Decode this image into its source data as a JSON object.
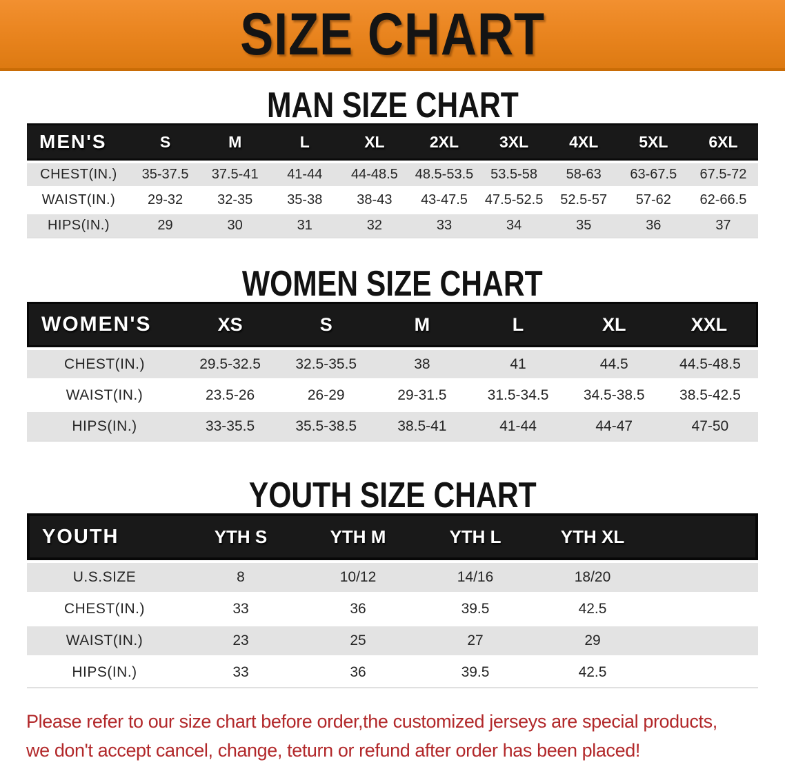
{
  "banner": {
    "title": "SIZE CHART"
  },
  "colors": {
    "banner_orange": "#E8831D",
    "banner_edge": "#C96C06",
    "header_black": "#191919",
    "row_gray": "#E3E3E3",
    "row_white": "#FFFFFF",
    "footer_red": "#B2282A",
    "heading_text": "#121212",
    "header_text": "#FFFFFF"
  },
  "men": {
    "heading": "MAN SIZE CHART",
    "table": {
      "header": [
        "MEN'S",
        "S",
        "M",
        "L",
        "XL",
        "2XL",
        "3XL",
        "4XL",
        "5XL",
        "6XL"
      ],
      "rows": [
        {
          "label": "CHEST(IN.)",
          "values": [
            "35-37.5",
            "37.5-41",
            "41-44",
            "44-48.5",
            "48.5-53.5",
            "53.5-58",
            "58-63",
            "63-67.5",
            "67.5-72"
          ]
        },
        {
          "label": "WAIST(IN.)",
          "values": [
            "29-32",
            "32-35",
            "35-38",
            "38-43",
            "43-47.5",
            "47.5-52.5",
            "52.5-57",
            "57-62",
            "62-66.5"
          ]
        },
        {
          "label": "HIPS(IN.)",
          "values": [
            "29",
            "30",
            "31",
            "32",
            "33",
            "34",
            "35",
            "36",
            "37"
          ]
        }
      ]
    }
  },
  "women": {
    "heading": "WOMEN SIZE CHART",
    "table": {
      "header": [
        "WOMEN'S",
        "XS",
        "S",
        "M",
        "L",
        "XL",
        "XXL"
      ],
      "rows": [
        {
          "label": "CHEST(IN.)",
          "values": [
            "29.5-32.5",
            "32.5-35.5",
            "38",
            "41",
            "44.5",
            "44.5-48.5"
          ]
        },
        {
          "label": "WAIST(IN.)",
          "values": [
            "23.5-26",
            "26-29",
            "29-31.5",
            "31.5-34.5",
            "34.5-38.5",
            "38.5-42.5"
          ]
        },
        {
          "label": "HIPS(IN.)",
          "values": [
            "33-35.5",
            "35.5-38.5",
            "38.5-41",
            "41-44",
            "44-47",
            "47-50"
          ]
        }
      ]
    }
  },
  "youth": {
    "heading": "YOUTH SIZE CHART",
    "table": {
      "header": [
        "YOUTH",
        "YTH S",
        "YTH M",
        "YTH L",
        "YTH XL",
        ""
      ],
      "rows": [
        {
          "label": "U.S.SIZE",
          "values": [
            "8",
            "10/12",
            "14/16",
            "18/20"
          ]
        },
        {
          "label": "CHEST(IN.)",
          "values": [
            "33",
            "36",
            "39.5",
            "42.5"
          ]
        },
        {
          "label": "WAIST(IN.)",
          "values": [
            "23",
            "25",
            "27",
            "29"
          ]
        },
        {
          "label": "HIPS(IN.)",
          "values": [
            "33",
            "36",
            "39.5",
            "42.5"
          ]
        }
      ]
    }
  },
  "footer": {
    "line1": "Please refer to our size chart before order,the customized jerseys are special products,",
    "line2": "we don't accept cancel, change, teturn or refund after order has been placed!"
  }
}
